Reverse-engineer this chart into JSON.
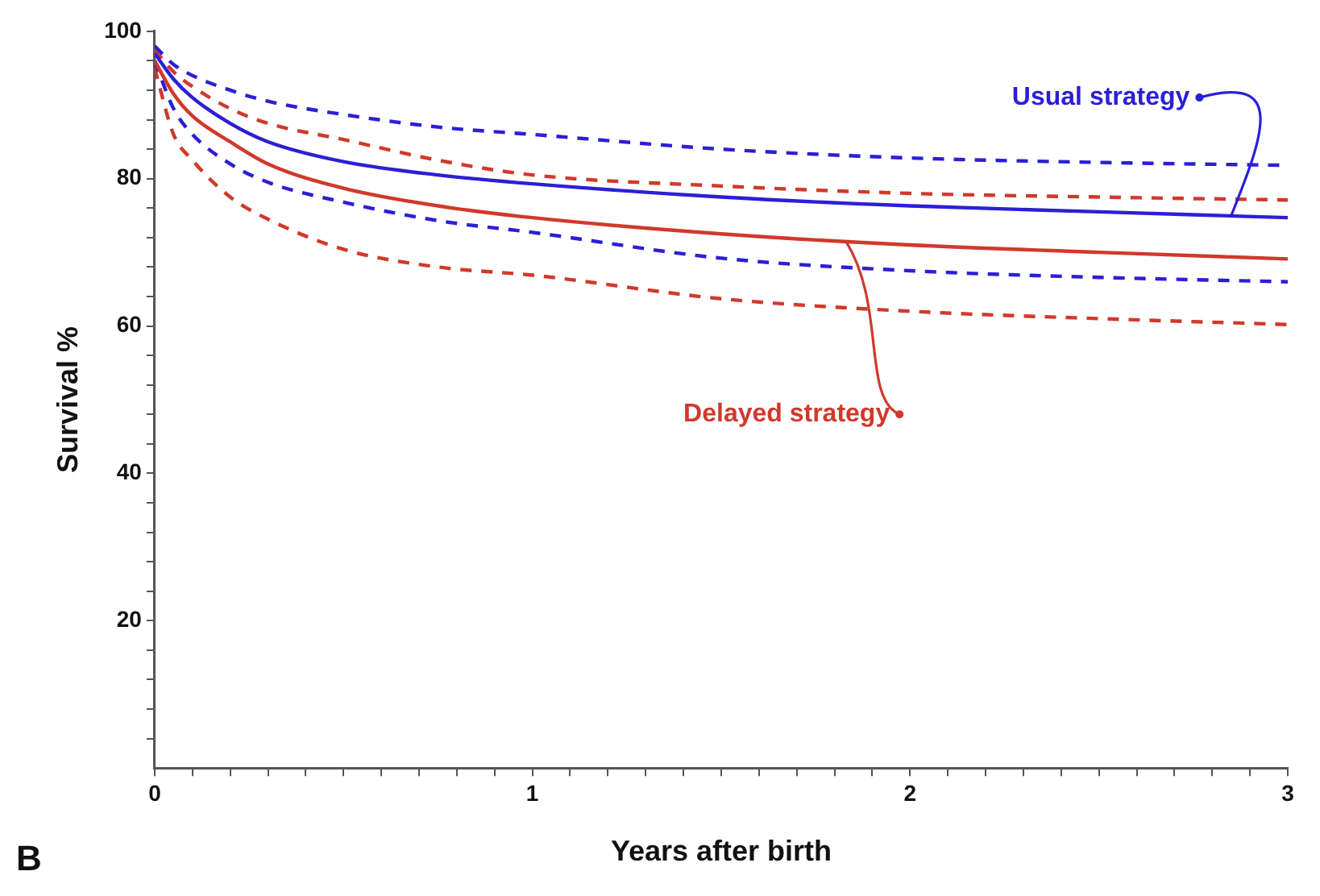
{
  "chart_data": {
    "type": "line",
    "xlabel": "Years after birth",
    "ylabel": "Survival %",
    "x": [
      0,
      0.05,
      0.1,
      0.2,
      0.3,
      0.5,
      0.75,
      1,
      1.5,
      2,
      2.5,
      3
    ],
    "series": [
      {
        "name": "Usual strategy",
        "color": "#2b1fd6",
        "values": [
          97,
          93.5,
          91,
          87.5,
          85,
          82.3,
          80.5,
          79.3,
          77.5,
          76.3,
          75.5,
          74.7
        ]
      },
      {
        "name": "Delayed strategy",
        "color": "#d0392b",
        "values": [
          96,
          91.5,
          88.5,
          85,
          82,
          78.7,
          76.3,
          74.7,
          72.5,
          71,
          70,
          69.1
        ]
      },
      {
        "color": "#2b1fd6",
        "line_style": "dashed",
        "values": [
          98,
          95.5,
          94,
          92,
          90.5,
          88.7,
          87,
          86,
          84,
          82.8,
          82.2,
          81.8
        ]
      },
      {
        "color": "#2b1fd6",
        "line_style": "dashed",
        "values": [
          96,
          89.5,
          86,
          82,
          79.5,
          76.8,
          74.3,
          72.7,
          69.2,
          67.5,
          66.6,
          66
        ]
      },
      {
        "color": "#d0392b",
        "line_style": "dashed",
        "values": [
          97.5,
          94.5,
          92.5,
          89.5,
          87.5,
          85.3,
          82.5,
          80.5,
          79,
          78,
          77.5,
          77.1
        ]
      },
      {
        "color": "#d0392b",
        "line_style": "dashed",
        "values": [
          95,
          86,
          82.5,
          77.5,
          74.5,
          70.4,
          68,
          66.9,
          63.7,
          62,
          61,
          60.2
        ]
      }
    ],
    "xlim": [
      0,
      3
    ],
    "ylim": [
      0,
      100
    ],
    "xticks": [
      0,
      {
        "value": 0.1,
        "label": null
      },
      {
        "value": 0.2,
        "label": null
      },
      {
        "value": 0.3,
        "label": null
      },
      {
        "value": 0.4,
        "label": null
      },
      {
        "value": 0.5,
        "label": null
      },
      {
        "value": 0.6,
        "label": null
      },
      {
        "value": 0.7,
        "label": null
      },
      {
        "value": 0.8,
        "label": null
      },
      {
        "value": 0.9,
        "label": null
      },
      1,
      {
        "value": 1.1,
        "label": null
      },
      {
        "value": 1.2,
        "label": null
      },
      {
        "value": 1.3,
        "label": null
      },
      {
        "value": 1.4,
        "label": null
      },
      {
        "value": 1.5,
        "label": null
      },
      {
        "value": 1.6,
        "label": null
      },
      {
        "value": 1.7,
        "label": null
      },
      {
        "value": 1.8,
        "label": null
      },
      {
        "value": 1.9,
        "label": null
      },
      2,
      {
        "value": 2.1,
        "label": null
      },
      {
        "value": 2.2,
        "label": null
      },
      {
        "value": 2.3,
        "label": null
      },
      {
        "value": 2.4,
        "label": null
      },
      {
        "value": 2.5,
        "label": null
      },
      {
        "value": 2.6,
        "label": null
      },
      {
        "value": 2.7,
        "label": null
      },
      {
        "value": 2.8,
        "label": null
      },
      {
        "value": 2.9,
        "label": null
      },
      3
    ],
    "yticks": [
      {
        "value": 4,
        "label": null
      },
      {
        "value": 8,
        "label": null
      },
      {
        "value": 12,
        "label": null
      },
      {
        "value": 16,
        "label": null
      },
      20,
      {
        "value": 24,
        "label": null
      },
      {
        "value": 28,
        "label": null
      },
      {
        "value": 32,
        "label": null
      },
      {
        "value": 36,
        "label": null
      },
      40,
      {
        "value": 44,
        "label": null
      },
      {
        "value": 48,
        "label": null
      },
      {
        "value": 52,
        "label": null
      },
      {
        "value": 56,
        "label": null
      },
      60,
      {
        "value": 64,
        "label": null
      },
      {
        "value": 68,
        "label": null
      },
      {
        "value": 72,
        "label": null
      },
      {
        "value": 76,
        "label": null
      },
      80,
      {
        "value": 84,
        "label": null
      },
      {
        "value": 88,
        "label": null
      },
      {
        "value": 92,
        "label": null
      },
      {
        "value": 96,
        "label": null
      },
      100
    ],
    "grid": false,
    "legend": "top right",
    "marker": "none",
    "line_style": "solid",
    "annotations": [
      "B"
    ]
  }
}
